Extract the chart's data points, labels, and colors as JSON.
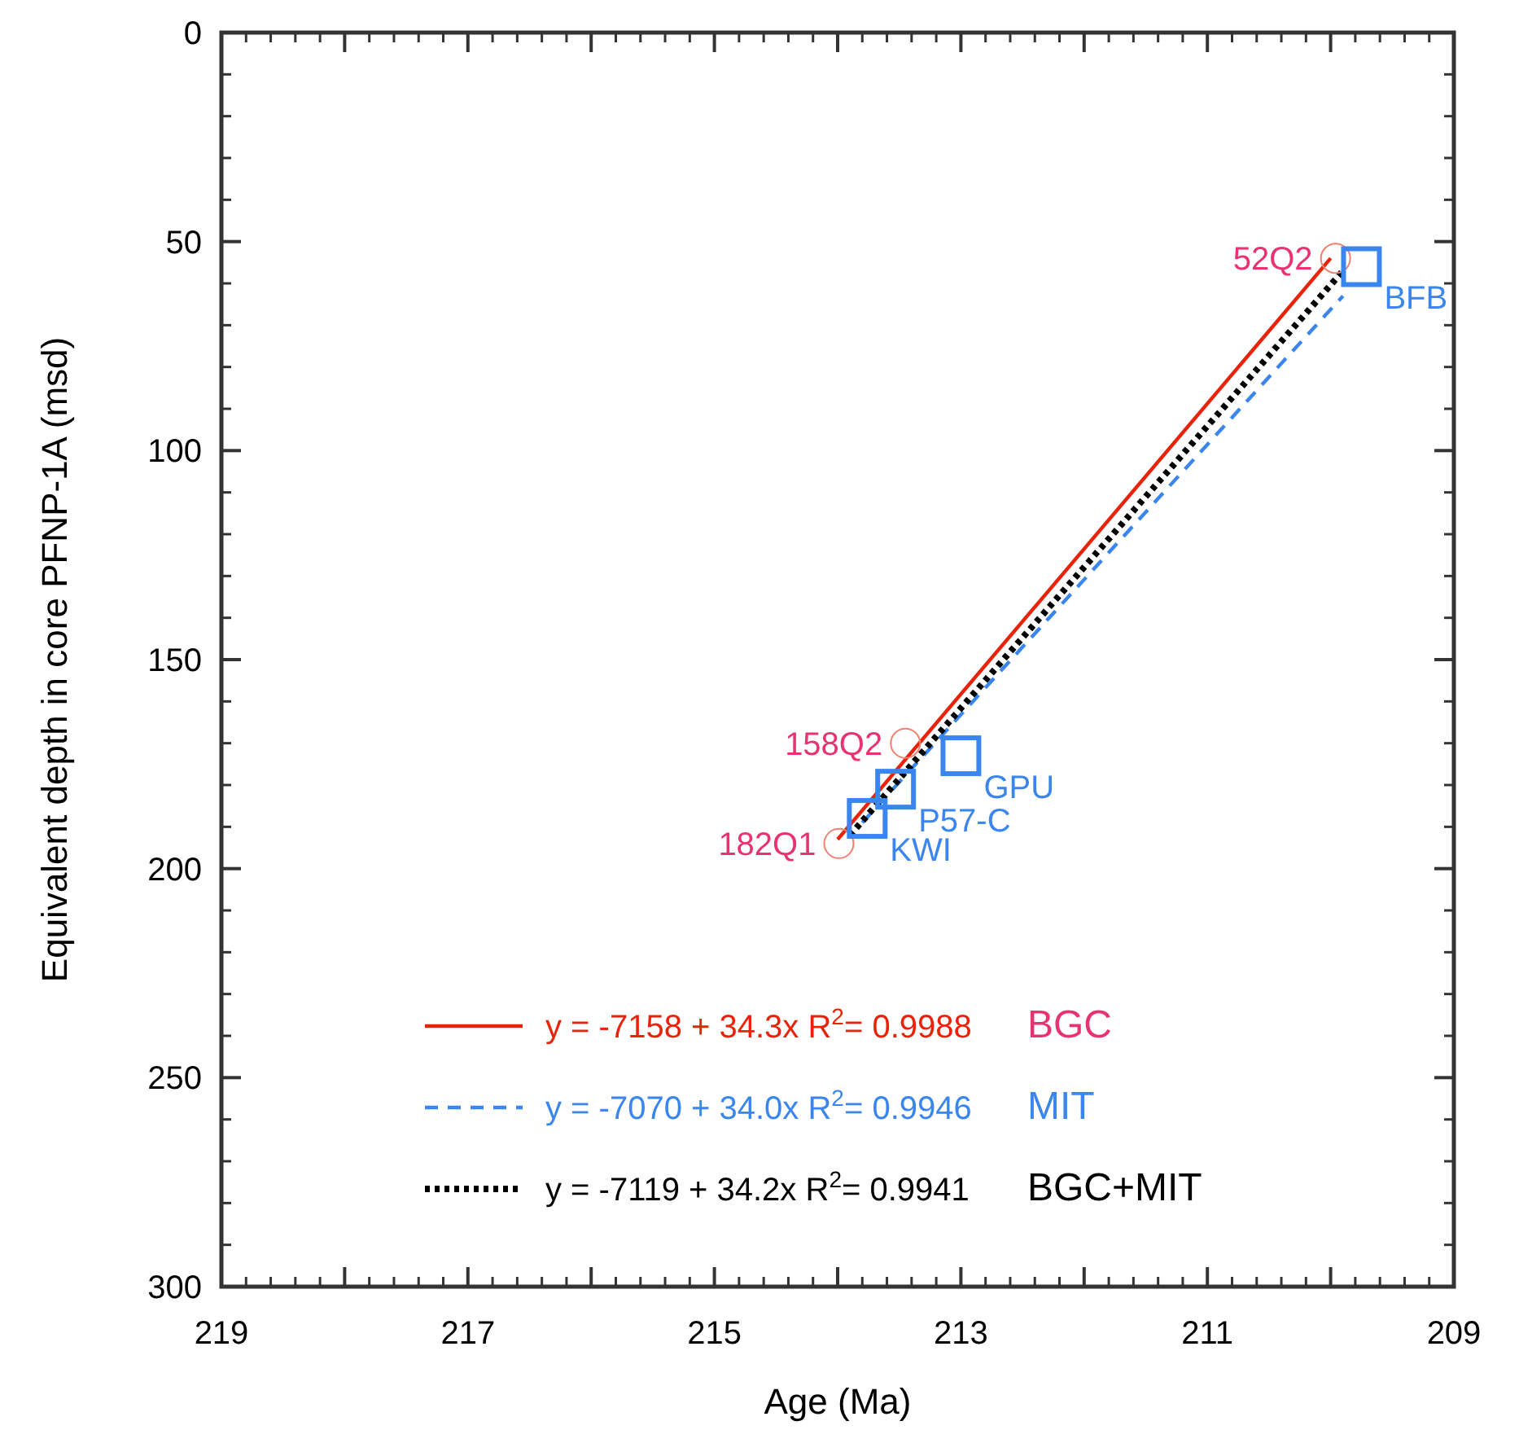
{
  "chart_data": {
    "type": "scatter",
    "xlabel": "Age (Ma)",
    "ylabel": "Equivalent depth in core PFNP-1A (msd)",
    "xlim": [
      219,
      209
    ],
    "ylim": [
      300,
      0
    ],
    "xticks": [
      219,
      {
        "value": 218,
        "label": null
      },
      217,
      {
        "value": 216,
        "label": null
      },
      215,
      {
        "value": 214,
        "label": null
      },
      213,
      {
        "value": 212,
        "label": null
      },
      211,
      {
        "value": 210,
        "label": null
      },
      209
    ],
    "yticks": [
      0,
      50,
      100,
      150,
      200,
      250,
      300
    ],
    "grid": false,
    "legend": "bottom",
    "series": [
      {
        "type": "line",
        "name": "y = -7158 + 34.3x R$^{2}$= 0.9988",
        "color": "#e8230a",
        "line_style": "solid",
        "x": [
          214.0,
          210.0
        ],
        "values": [
          193,
          54
        ]
      },
      {
        "type": "line",
        "name": "y = -7070 + 34.0x  R$^{2}$= 0.9946",
        "color": "#3a86ee",
        "line_style": "dashed",
        "x": [
          213.8,
          209.9
        ],
        "values": [
          189,
          63
        ]
      },
      {
        "type": "line",
        "name": "y = -7119 + 34.2x  R$^{2}$= 0.9941",
        "color": "#000000",
        "line_style": "dotted",
        "x": [
          213.9,
          209.9
        ],
        "values": [
          192,
          57
        ]
      },
      {
        "marker": "circle",
        "color": "#f08070",
        "x": [
          209.96,
          213.45,
          213.99
        ],
        "values": [
          54,
          170,
          194
        ]
      },
      {
        "marker": "square",
        "color": "#3a86ee",
        "x": [
          209.75,
          213.0,
          213.53,
          213.76
        ],
        "values": [
          56,
          173,
          181,
          188
        ]
      }
    ],
    "annotations": [
      {
        "text": "52Q2",
        "x": 209.96,
        "y": 54
      },
      {
        "text": "158Q2",
        "x": 213.45,
        "y": 170
      },
      {
        "text": "182Q1",
        "x": 213.99,
        "y": 194
      },
      {
        "text": "BFB",
        "x": 209.75,
        "y": 56
      },
      {
        "text": "GPU",
        "x": 213.0,
        "y": 173
      },
      {
        "text": "P57-C",
        "x": 213.53,
        "y": 181
      },
      {
        "text": "KWI",
        "x": 213.76,
        "y": 188
      },
      "BGC",
      "MIT",
      "BGC+MIT"
    ]
  }
}
